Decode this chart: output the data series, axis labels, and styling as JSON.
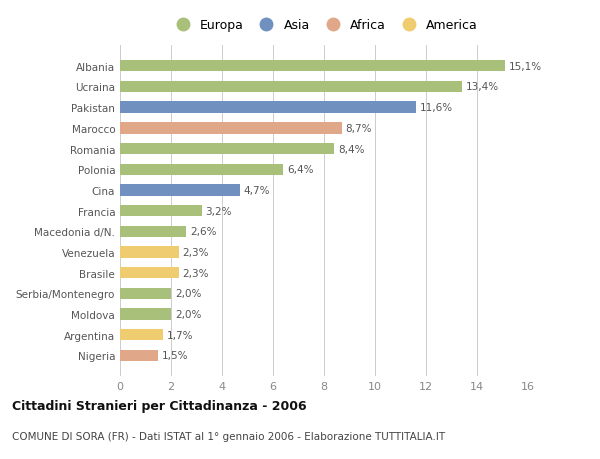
{
  "categories": [
    "Nigeria",
    "Argentina",
    "Moldova",
    "Serbia/Montenegro",
    "Brasile",
    "Venezuela",
    "Macedonia d/N.",
    "Francia",
    "Cina",
    "Polonia",
    "Romania",
    "Marocco",
    "Pakistan",
    "Ucraina",
    "Albania"
  ],
  "values": [
    1.5,
    1.7,
    2.0,
    2.0,
    2.3,
    2.3,
    2.6,
    3.2,
    4.7,
    6.4,
    8.4,
    8.7,
    11.6,
    13.4,
    15.1
  ],
  "labels": [
    "1,5%",
    "1,7%",
    "2,0%",
    "2,0%",
    "2,3%",
    "2,3%",
    "2,6%",
    "3,2%",
    "4,7%",
    "6,4%",
    "8,4%",
    "8,7%",
    "11,6%",
    "13,4%",
    "15,1%"
  ],
  "continents": [
    "Africa",
    "America",
    "Europa",
    "Europa",
    "America",
    "America",
    "Europa",
    "Europa",
    "Asia",
    "Europa",
    "Europa",
    "Africa",
    "Asia",
    "Europa",
    "Europa"
  ],
  "colors": {
    "Europa": "#a8c07a",
    "Asia": "#7090c0",
    "Africa": "#e0a888",
    "America": "#f0cc70"
  },
  "legend_order": [
    "Europa",
    "Asia",
    "Africa",
    "America"
  ],
  "title": "Cittadini Stranieri per Cittadinanza - 2006",
  "subtitle": "COMUNE DI SORA (FR) - Dati ISTAT al 1° gennaio 2006 - Elaborazione TUTTITALIA.IT",
  "xlim": [
    0,
    16
  ],
  "xticks": [
    0,
    2,
    4,
    6,
    8,
    10,
    12,
    14,
    16
  ],
  "background_color": "#ffffff",
  "grid_color": "#cccccc",
  "bar_height": 0.55
}
